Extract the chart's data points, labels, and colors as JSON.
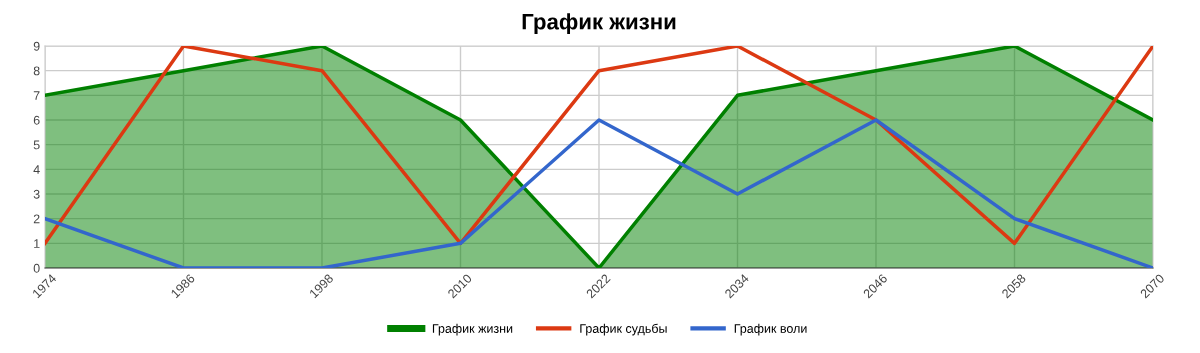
{
  "chart_data": {
    "type": "line",
    "title": "График жизни",
    "categories": [
      "1974",
      "1986",
      "1998",
      "2010",
      "2022",
      "2034",
      "2046",
      "2058",
      "2070"
    ],
    "series": [
      {
        "name": "График жизни",
        "type": "area",
        "color": "#008000",
        "values": [
          7,
          8,
          9,
          6,
          0,
          7,
          8,
          9,
          6
        ]
      },
      {
        "name": "График судьбы",
        "color": "#dc3912",
        "values": [
          1,
          9,
          8,
          1,
          8,
          9,
          6,
          1,
          9
        ]
      },
      {
        "name": "График воли",
        "color": "#3366cc",
        "values": [
          2,
          0,
          0,
          1,
          6,
          3,
          6,
          2,
          0
        ]
      }
    ],
    "ylim": [
      0,
      9
    ],
    "yticks": [
      0,
      1,
      2,
      3,
      4,
      5,
      6,
      7,
      8,
      9
    ],
    "grid": true,
    "legend": "bottom"
  }
}
